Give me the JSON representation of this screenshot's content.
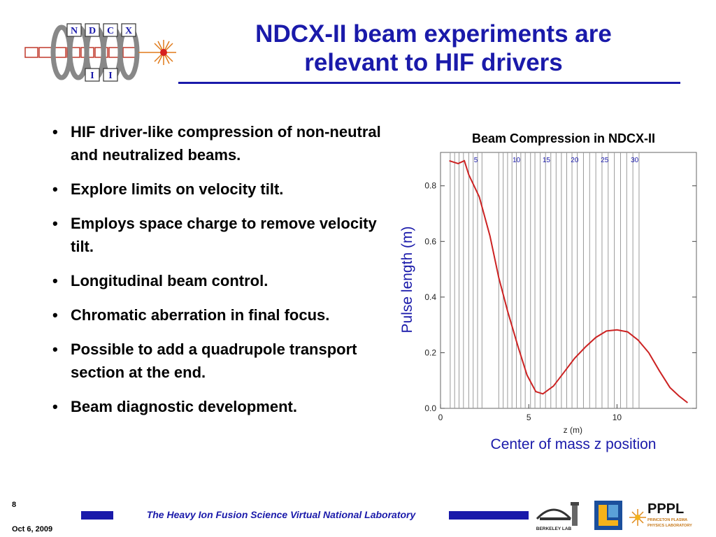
{
  "header": {
    "logo_letters": [
      "N",
      "D",
      "C",
      "X",
      "I",
      "I"
    ],
    "title_line1": "NDCX-II beam experiments are",
    "title_line2": "relevant to HIF drivers"
  },
  "bullets": [
    "HIF driver-like compression of non-neutral and neutralized beams.",
    "Explore limits on velocity tilt.",
    "Employs space charge to remove velocity tilt.",
    "Longitudinal beam control.",
    "Chromatic aberration in final focus.",
    "Possible to add a quadrupole transport section at the end.",
    "Beam diagnostic development."
  ],
  "bullet_symbol": "•",
  "figure": {
    "title": "Beam Compression in NDCX-II",
    "ylabel": "Pulse length (m)",
    "caption": "Center of mass z position"
  },
  "chart_data": {
    "type": "line",
    "xlabel": "z (m)",
    "ylabel": "Pulse length (m)",
    "xlim": [
      0,
      14.5
    ],
    "ylim": [
      0,
      0.92
    ],
    "x_ticks": [
      0,
      5,
      10
    ],
    "y_ticks": [
      0.0,
      0.2,
      0.4,
      0.6,
      0.8
    ],
    "y_tick_labels": [
      "0.0",
      "0.2",
      "0.4",
      "0.6",
      "0.8"
    ],
    "top_ticks": [
      {
        "x": 2.0,
        "label": "5"
      },
      {
        "x": 4.3,
        "label": "10"
      },
      {
        "x": 6.0,
        "label": "15"
      },
      {
        "x": 7.6,
        "label": "20"
      },
      {
        "x": 9.3,
        "label": "25"
      },
      {
        "x": 11.0,
        "label": "30"
      }
    ],
    "gridlines_x": [
      0.55,
      0.8,
      1.05,
      1.3,
      1.6,
      1.85,
      2.1,
      2.35,
      3.3,
      3.55,
      3.8,
      4.05,
      4.3,
      4.55,
      4.8,
      5.1,
      5.35,
      5.65,
      5.95,
      6.25,
      6.55,
      6.85,
      7.15,
      7.45,
      7.75,
      8.1,
      8.45,
      8.8,
      9.15,
      9.5,
      9.85,
      10.2,
      10.55,
      10.9,
      11.25
    ],
    "grid": false,
    "series": [
      {
        "color": "#cc2222",
        "x": [
          0.5,
          1.0,
          1.35,
          1.6,
          2.2,
          2.8,
          3.3,
          3.8,
          4.4,
          4.9,
          5.4,
          5.8,
          6.4,
          7.0,
          7.6,
          8.2,
          8.8,
          9.4,
          10.0,
          10.6,
          11.2,
          11.8,
          12.4,
          13.0,
          13.5,
          14.0
        ],
        "y": [
          0.89,
          0.88,
          0.89,
          0.84,
          0.76,
          0.62,
          0.47,
          0.35,
          0.22,
          0.12,
          0.06,
          0.052,
          0.08,
          0.13,
          0.18,
          0.22,
          0.255,
          0.278,
          0.282,
          0.275,
          0.245,
          0.2,
          0.135,
          0.075,
          0.045,
          0.02
        ]
      }
    ]
  },
  "footer": {
    "page_number": "8",
    "date": "Oct 6, 2009",
    "text": "The Heavy Ion Fusion Science Virtual National Laboratory",
    "berkeley_label": "BERKELEY LAB",
    "pppl_label": "PPPL",
    "pppl_sub1": "PRINCETON PLASMA",
    "pppl_sub2": "PHYSICS LABORATORY"
  },
  "colors": {
    "title_blue": "#1a1aaa",
    "curve_red": "#cc2222",
    "logo_red": "#c0392b"
  }
}
